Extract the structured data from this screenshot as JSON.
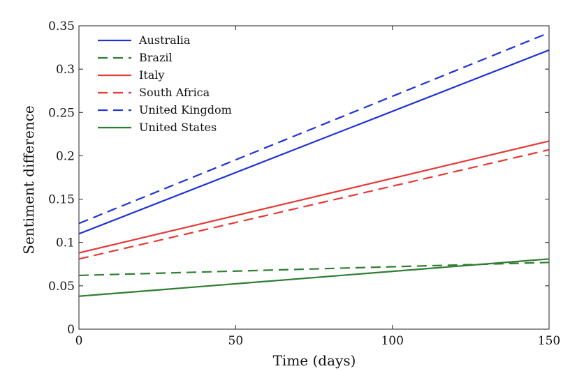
{
  "chart_data": {
    "type": "line",
    "xlabel": "Time (days)",
    "ylabel": "Sentiment difference",
    "xlim": [
      0,
      150
    ],
    "ylim": [
      0,
      0.35
    ],
    "x_ticks": [
      {
        "value": 0,
        "label": "0"
      },
      {
        "value": 50,
        "label": "50"
      },
      {
        "value": 100,
        "label": "100"
      },
      {
        "value": 150,
        "label": "150"
      }
    ],
    "y_ticks": [
      {
        "value": 0,
        "label": "0"
      },
      {
        "value": 0.05,
        "label": "0.05"
      },
      {
        "value": 0.1,
        "label": "0.1"
      },
      {
        "value": 0.15,
        "label": "0.15"
      },
      {
        "value": 0.2,
        "label": "0.2"
      },
      {
        "value": 0.25,
        "label": "0.25"
      },
      {
        "value": 0.3,
        "label": "0.3"
      },
      {
        "value": 0.35,
        "label": "0.35"
      }
    ],
    "grid": false,
    "legend_position": "top-left",
    "x": [
      0,
      150
    ],
    "series": [
      {
        "name": "Australia",
        "values": [
          0.11,
          0.322
        ],
        "color": "#1f32d6",
        "dash": "solid"
      },
      {
        "name": "Brazil",
        "values": [
          0.062,
          0.077
        ],
        "color": "#2e7d32",
        "dash": "dashed"
      },
      {
        "name": "Italy",
        "values": [
          0.088,
          0.217
        ],
        "color": "#e53935",
        "dash": "solid"
      },
      {
        "name": "South Africa",
        "values": [
          0.081,
          0.207
        ],
        "color": "#e53935",
        "dash": "dashed"
      },
      {
        "name": "United Kingdom",
        "values": [
          0.122,
          0.342
        ],
        "color": "#1f32d6",
        "dash": "dashed"
      },
      {
        "name": "United States",
        "values": [
          0.038,
          0.081
        ],
        "color": "#2e7d32",
        "dash": "solid"
      }
    ]
  }
}
